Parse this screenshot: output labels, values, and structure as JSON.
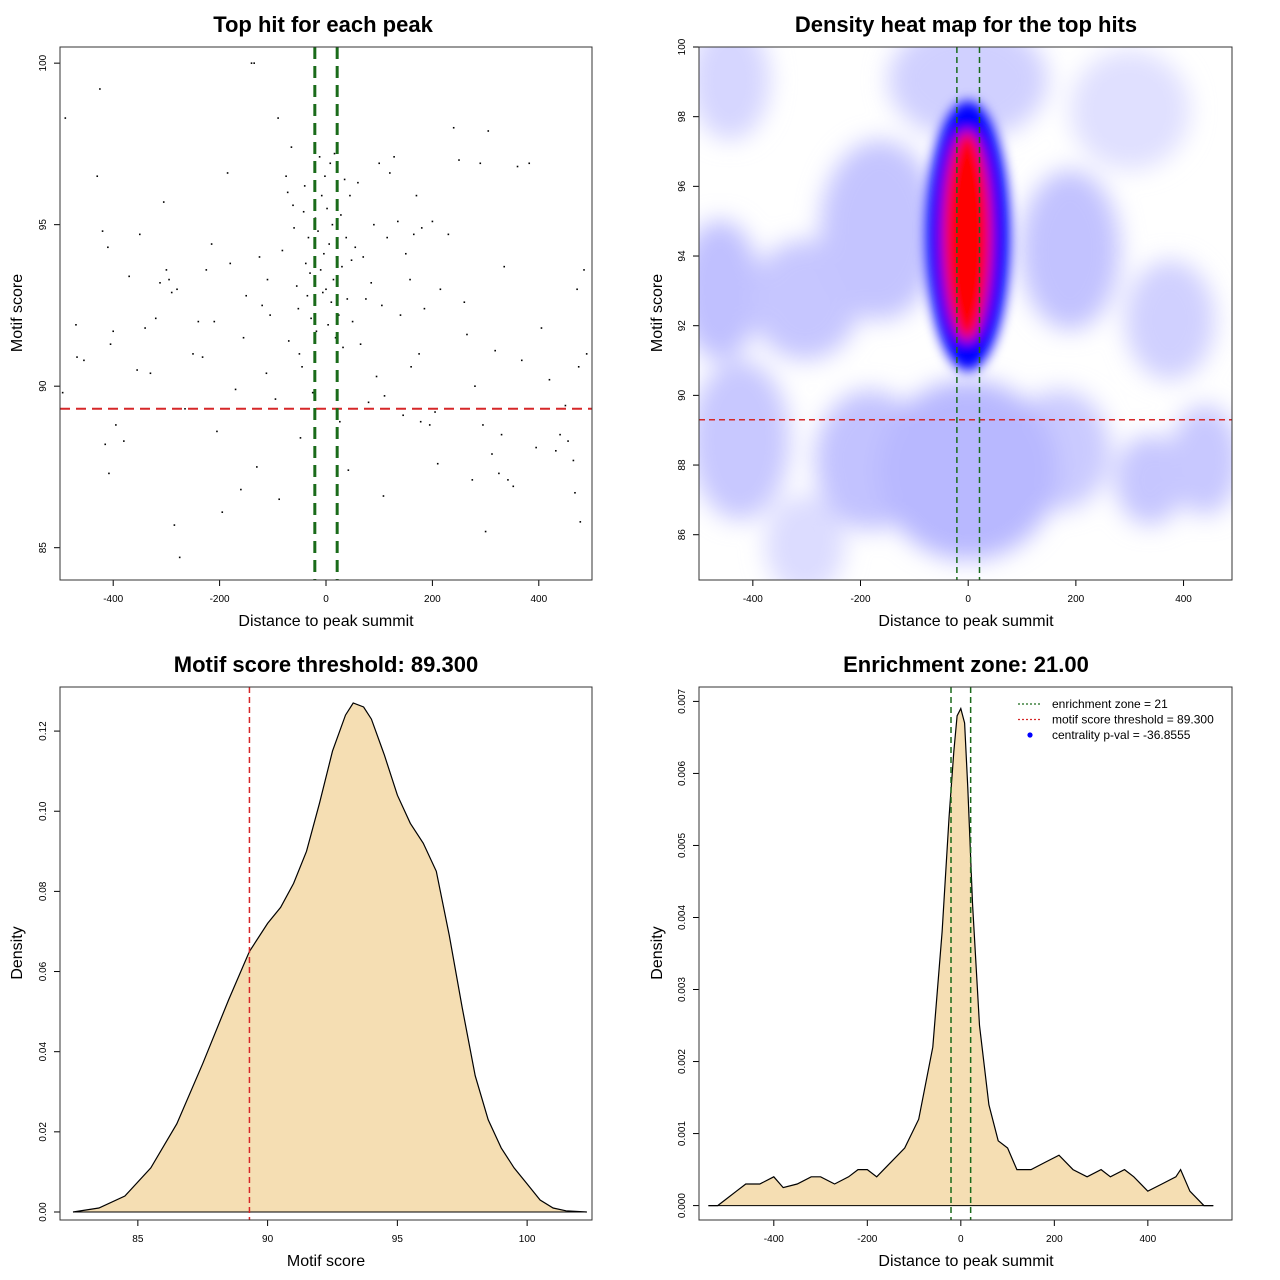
{
  "chart_data": [
    {
      "type": "scatter",
      "title": "Top hit for each peak",
      "xlabel": "Distance to peak summit",
      "ylabel": "Motif score",
      "xlim": [
        -500,
        500
      ],
      "ylim": [
        84.0,
        100.5
      ],
      "xticks": [
        -400,
        -200,
        0,
        200,
        400
      ],
      "yticks": [
        85,
        90,
        95,
        100
      ],
      "score_threshold": 89.3,
      "enrichment_zone": [
        -21,
        21
      ],
      "threshold_color": "#d62728",
      "zone_color": "#1a6b1a",
      "point_color": "#000000",
      "points": [
        [
          -495,
          89.8
        ],
        [
          -490,
          98.3
        ],
        [
          -470,
          91.9
        ],
        [
          -468,
          90.9
        ],
        [
          -455,
          90.8
        ],
        [
          -430,
          96.5
        ],
        [
          -425,
          99.2
        ],
        [
          -420,
          94.8
        ],
        [
          -415,
          88.2
        ],
        [
          -410,
          94.3
        ],
        [
          -408,
          87.3
        ],
        [
          -405,
          91.3
        ],
        [
          -400,
          91.7
        ],
        [
          -395,
          88.8
        ],
        [
          -380,
          88.3
        ],
        [
          -370,
          93.4
        ],
        [
          -355,
          90.5
        ],
        [
          -350,
          94.7
        ],
        [
          -340,
          91.8
        ],
        [
          -330,
          90.4
        ],
        [
          -320,
          92.1
        ],
        [
          -312,
          93.2
        ],
        [
          -305,
          95.7
        ],
        [
          -300,
          93.6
        ],
        [
          -295,
          93.3
        ],
        [
          -290,
          92.9
        ],
        [
          -285,
          85.7
        ],
        [
          -280,
          93.0
        ],
        [
          -275,
          84.7
        ],
        [
          -265,
          89.3
        ],
        [
          -250,
          91.0
        ],
        [
          -240,
          92.0
        ],
        [
          -232,
          90.9
        ],
        [
          -225,
          93.6
        ],
        [
          -215,
          94.4
        ],
        [
          -210,
          92.0
        ],
        [
          -205,
          88.6
        ],
        [
          -195,
          86.1
        ],
        [
          -185,
          96.6
        ],
        [
          -180,
          93.8
        ],
        [
          -170,
          89.9
        ],
        [
          -160,
          86.8
        ],
        [
          -155,
          91.5
        ],
        [
          -150,
          92.8
        ],
        [
          -140,
          100.0
        ],
        [
          -135,
          100.0
        ],
        [
          -130,
          87.5
        ],
        [
          -125,
          94.0
        ],
        [
          -120,
          92.5
        ],
        [
          -112,
          90.4
        ],
        [
          -110,
          93.3
        ],
        [
          -105,
          92.2
        ],
        [
          -95,
          89.6
        ],
        [
          -90,
          98.3
        ],
        [
          -88,
          86.5
        ],
        [
          -82,
          94.2
        ],
        [
          -75,
          96.5
        ],
        [
          -72,
          96.0
        ],
        [
          -70,
          91.4
        ],
        [
          -65,
          97.4
        ],
        [
          -62,
          95.6
        ],
        [
          -60,
          94.9
        ],
        [
          -55,
          93.1
        ],
        [
          -52,
          92.4
        ],
        [
          -50,
          91.0
        ],
        [
          -48,
          88.4
        ],
        [
          -45,
          90.6
        ],
        [
          -42,
          95.4
        ],
        [
          -40,
          96.2
        ],
        [
          -38,
          93.8
        ],
        [
          -35,
          92.8
        ],
        [
          -33,
          94.6
        ],
        [
          -30,
          93.5
        ],
        [
          -28,
          92.1
        ],
        [
          -25,
          89.8
        ],
        [
          -22,
          96.7
        ],
        [
          -20,
          95.2
        ],
        [
          -18,
          91.7
        ],
        [
          -15,
          94.8
        ],
        [
          -12,
          97.1
        ],
        [
          -10,
          93.6
        ],
        [
          -8,
          95.9
        ],
        [
          -6,
          92.9
        ],
        [
          -4,
          94.1
        ],
        [
          -2,
          96.5
        ],
        [
          0,
          93.0
        ],
        [
          2,
          95.5
        ],
        [
          4,
          91.9
        ],
        [
          6,
          94.4
        ],
        [
          8,
          96.9
        ],
        [
          10,
          92.6
        ],
        [
          12,
          95.0
        ],
        [
          14,
          93.3
        ],
        [
          16,
          97.2
        ],
        [
          18,
          91.5
        ],
        [
          20,
          94.0
        ],
        [
          22,
          96.1
        ],
        [
          24,
          92.2
        ],
        [
          26,
          88.9
        ],
        [
          28,
          95.3
        ],
        [
          30,
          93.7
        ],
        [
          32,
          91.2
        ],
        [
          35,
          96.4
        ],
        [
          38,
          94.6
        ],
        [
          40,
          92.7
        ],
        [
          42,
          87.4
        ],
        [
          45,
          95.9
        ],
        [
          48,
          93.9
        ],
        [
          50,
          92.0
        ],
        [
          55,
          94.3
        ],
        [
          60,
          96.3
        ],
        [
          65,
          91.3
        ],
        [
          70,
          94.0
        ],
        [
          75,
          92.7
        ],
        [
          80,
          89.5
        ],
        [
          85,
          93.2
        ],
        [
          90,
          95.0
        ],
        [
          95,
          90.3
        ],
        [
          100,
          96.9
        ],
        [
          105,
          92.5
        ],
        [
          108,
          86.6
        ],
        [
          110,
          89.7
        ],
        [
          115,
          94.6
        ],
        [
          120,
          96.6
        ],
        [
          128,
          97.1
        ],
        [
          135,
          95.1
        ],
        [
          140,
          92.2
        ],
        [
          145,
          89.1
        ],
        [
          150,
          94.1
        ],
        [
          158,
          93.3
        ],
        [
          160,
          90.6
        ],
        [
          165,
          94.7
        ],
        [
          170,
          95.9
        ],
        [
          175,
          91.0
        ],
        [
          178,
          88.9
        ],
        [
          180,
          94.9
        ],
        [
          185,
          92.4
        ],
        [
          195,
          88.8
        ],
        [
          200,
          95.1
        ],
        [
          205,
          89.2
        ],
        [
          210,
          87.6
        ],
        [
          215,
          93.0
        ],
        [
          230,
          94.7
        ],
        [
          240,
          98.0
        ],
        [
          250,
          97.0
        ],
        [
          260,
          92.6
        ],
        [
          265,
          91.6
        ],
        [
          275,
          87.1
        ],
        [
          280,
          90.0
        ],
        [
          290,
          96.9
        ],
        [
          295,
          88.8
        ],
        [
          300,
          85.5
        ],
        [
          305,
          97.9
        ],
        [
          312,
          87.9
        ],
        [
          318,
          91.1
        ],
        [
          325,
          87.3
        ],
        [
          330,
          88.5
        ],
        [
          335,
          93.7
        ],
        [
          342,
          87.1
        ],
        [
          352,
          86.9
        ],
        [
          360,
          96.8
        ],
        [
          368,
          90.8
        ],
        [
          382,
          96.9
        ],
        [
          395,
          88.1
        ],
        [
          405,
          91.8
        ],
        [
          420,
          90.2
        ],
        [
          432,
          88.0
        ],
        [
          440,
          88.5
        ],
        [
          450,
          89.4
        ],
        [
          455,
          88.3
        ],
        [
          465,
          87.7
        ],
        [
          468,
          86.7
        ],
        [
          472,
          93.0
        ],
        [
          475,
          90.6
        ],
        [
          478,
          85.8
        ],
        [
          485,
          93.6
        ],
        [
          490,
          91.0
        ]
      ]
    },
    {
      "type": "heatmap",
      "title": "Density heat map for the top hits",
      "xlabel": "Distance to peak summit",
      "ylabel": "Motif score",
      "xlim": [
        -500,
        490
      ],
      "ylim": [
        84.7,
        100.0
      ],
      "xticks": [
        -400,
        -200,
        0,
        200,
        400
      ],
      "yticks": [
        86,
        88,
        90,
        92,
        94,
        96,
        98,
        100
      ],
      "score_threshold": 89.3,
      "enrichment_zone": [
        -21,
        21
      ],
      "colormap": [
        "#ffffff",
        "#0000ff",
        "#ff0000"
      ],
      "hotspot": {
        "x": 0,
        "y": 94.5
      }
    },
    {
      "type": "area",
      "title": "Motif score threshold: 89.300",
      "xlabel": "Motif score",
      "ylabel": "Density",
      "xlim": [
        82,
        102.5
      ],
      "ylim": [
        -0.002,
        0.131
      ],
      "xticks": [
        85,
        90,
        95,
        100
      ],
      "yticks": [
        0.0,
        0.02,
        0.04,
        0.06,
        0.08,
        0.1,
        0.12
      ],
      "ytick_labels": [
        "0.00",
        "0.02",
        "0.04",
        "0.06",
        "0.08",
        "0.10",
        "0.12"
      ],
      "threshold": 89.3,
      "fill_color": "#f5deb3",
      "x": [
        82.5,
        83.5,
        84.5,
        85.5,
        86.5,
        87.5,
        88.5,
        89.3,
        90.0,
        90.5,
        91.0,
        91.5,
        92.0,
        92.5,
        93.0,
        93.3,
        93.7,
        94.0,
        94.5,
        95.0,
        95.5,
        96.0,
        96.5,
        97.0,
        97.5,
        98.0,
        98.5,
        99.0,
        99.5,
        100.0,
        100.5,
        101.0,
        101.5,
        102.3
      ],
      "y": [
        0.0,
        0.001,
        0.004,
        0.011,
        0.022,
        0.037,
        0.053,
        0.065,
        0.072,
        0.076,
        0.082,
        0.09,
        0.102,
        0.115,
        0.124,
        0.127,
        0.126,
        0.123,
        0.114,
        0.104,
        0.097,
        0.092,
        0.085,
        0.069,
        0.051,
        0.034,
        0.023,
        0.016,
        0.011,
        0.007,
        0.003,
        0.001,
        0.0003,
        0.0
      ]
    },
    {
      "type": "area",
      "title": "Enrichment zone: 21.00",
      "xlabel": "Distance to peak summit",
      "ylabel": "Density",
      "xlim": [
        -560,
        580
      ],
      "ylim": [
        -0.0002,
        0.0072
      ],
      "xticks": [
        -400,
        -200,
        0,
        200,
        400
      ],
      "yticks": [
        0.0,
        0.001,
        0.002,
        0.003,
        0.004,
        0.005,
        0.006,
        0.007
      ],
      "ytick_labels": [
        "0.000",
        "0.001",
        "0.002",
        "0.003",
        "0.004",
        "0.005",
        "0.006",
        "0.007"
      ],
      "enrichment_zone": [
        -21,
        21
      ],
      "fill_color": "#f5deb3",
      "legend": [
        {
          "label": "enrichment zone = 21",
          "color": "#1a6b1a",
          "style": "dotted"
        },
        {
          "label": "motif score threshold = 89.300",
          "color": "#d62728",
          "style": "dotted"
        },
        {
          "label": "centrality p-val = -36.8555",
          "color": "#0000ff",
          "style": "point"
        }
      ],
      "legend_position": "top-right",
      "x": [
        -540,
        -520,
        -500,
        -480,
        -460,
        -430,
        -400,
        -380,
        -350,
        -320,
        -300,
        -270,
        -240,
        -220,
        -200,
        -180,
        -150,
        -120,
        -90,
        -60,
        -40,
        -25,
        -15,
        -8,
        0,
        8,
        15,
        25,
        40,
        60,
        80,
        100,
        120,
        150,
        180,
        210,
        240,
        270,
        300,
        320,
        350,
        370,
        400,
        430,
        460,
        470,
        490,
        520,
        540
      ],
      "y": [
        0.0,
        0.0,
        0.0001,
        0.0002,
        0.0003,
        0.0003,
        0.0004,
        0.00025,
        0.0003,
        0.0004,
        0.0004,
        0.0003,
        0.0004,
        0.0005,
        0.0005,
        0.0004,
        0.0006,
        0.0008,
        0.0012,
        0.0022,
        0.0038,
        0.0054,
        0.0063,
        0.0068,
        0.0069,
        0.0067,
        0.0058,
        0.0042,
        0.0025,
        0.0014,
        0.0009,
        0.0008,
        0.0005,
        0.0005,
        0.0006,
        0.0007,
        0.0005,
        0.0004,
        0.0005,
        0.0004,
        0.0005,
        0.0004,
        0.0002,
        0.0003,
        0.0004,
        0.0005,
        0.0002,
        0.0,
        0.0
      ]
    }
  ]
}
